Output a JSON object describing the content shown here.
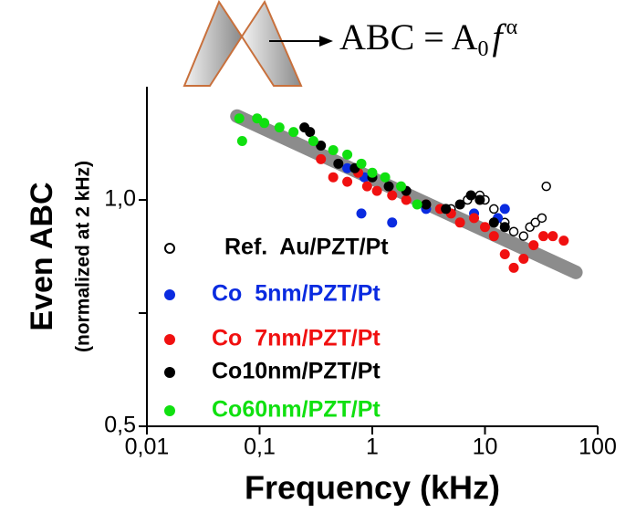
{
  "chart_data": {
    "type": "scatter",
    "annotation": {
      "lhs": "ABC = A",
      "sub": "0",
      "var": "f",
      "sup": "α"
    },
    "ylabel": "Even ABC",
    "ylabel2": "(normalized at 2 kHz)",
    "xlabel": "Frequency (kHz)",
    "xscale": "log",
    "xlim": [
      0.01,
      100
    ],
    "xticks": [
      {
        "value": 0.01,
        "label": "0,01"
      },
      {
        "value": 0.1,
        "label": "0,1"
      },
      1,
      10,
      100
    ],
    "ylim": [
      0.5,
      1.25
    ],
    "yticks": [
      {
        "value": 0.5,
        "label": "0,5"
      },
      {
        "value": 1,
        "label": "1,0"
      }
    ],
    "yminor_ticks": [
      0.75
    ],
    "fit": {
      "color": "#8c8c8c",
      "x": [
        0.063,
        64
      ],
      "y": [
        1.185,
        0.84
      ]
    },
    "series": [
      {
        "name": "Ref.  Au/PZT/Pt",
        "color": "#000000",
        "marker": "open",
        "x": [
          5,
          7,
          9,
          10,
          12,
          15,
          18,
          22,
          25,
          28,
          32,
          35
        ],
        "values": [
          0.98,
          1.0,
          1.01,
          1.0,
          0.98,
          0.95,
          0.93,
          0.92,
          0.94,
          0.95,
          0.96,
          1.03
        ]
      },
      {
        "name": "Co  5nm/PZT/Pt",
        "color": "#0a2be0",
        "marker": "filled",
        "x": [
          0.6,
          0.8,
          0.85,
          1.5,
          3,
          8,
          13,
          15
        ],
        "values": [
          1.07,
          0.97,
          1.05,
          0.95,
          0.98,
          0.97,
          0.96,
          0.98
        ]
      },
      {
        "name": "Co  7nm/PZT/Pt",
        "color": "#f01010",
        "marker": "filled",
        "x": [
          0.35,
          0.45,
          0.6,
          0.75,
          0.9,
          1.1,
          1.5,
          2,
          3,
          4,
          5,
          6,
          8,
          10,
          12,
          15,
          18,
          22,
          27,
          33,
          40,
          50
        ],
        "values": [
          1.09,
          1.05,
          1.04,
          1.06,
          1.03,
          1.02,
          1.01,
          1.0,
          0.99,
          0.98,
          0.97,
          0.95,
          0.96,
          0.94,
          0.92,
          0.88,
          0.85,
          0.87,
          0.9,
          0.92,
          0.92,
          0.91
        ]
      },
      {
        "name": "Co10nm/PZT/Pt",
        "color": "#000000",
        "marker": "filled",
        "x": [
          0.25,
          0.28,
          0.35,
          0.5,
          0.7,
          1.0,
          1.4,
          2.0,
          3.0,
          4.5,
          6,
          7.5,
          9,
          12,
          15
        ],
        "values": [
          1.16,
          1.15,
          1.12,
          1.08,
          1.07,
          1.05,
          1.03,
          1.02,
          0.99,
          0.98,
          0.99,
          1.01,
          1.0,
          0.95,
          0.94
        ]
      },
      {
        "name": "Co60nm/PZT/Pt",
        "color": "#10e010",
        "marker": "filled",
        "x": [
          0.066,
          0.07,
          0.095,
          0.11,
          0.15,
          0.2,
          0.3,
          0.45,
          0.6,
          0.8,
          1.0,
          1.3,
          1.8,
          2.5
        ],
        "values": [
          1.18,
          1.13,
          1.18,
          1.17,
          1.16,
          1.15,
          1.13,
          1.11,
          1.1,
          1.08,
          1.06,
          1.05,
          1.03,
          0.99
        ]
      }
    ]
  }
}
